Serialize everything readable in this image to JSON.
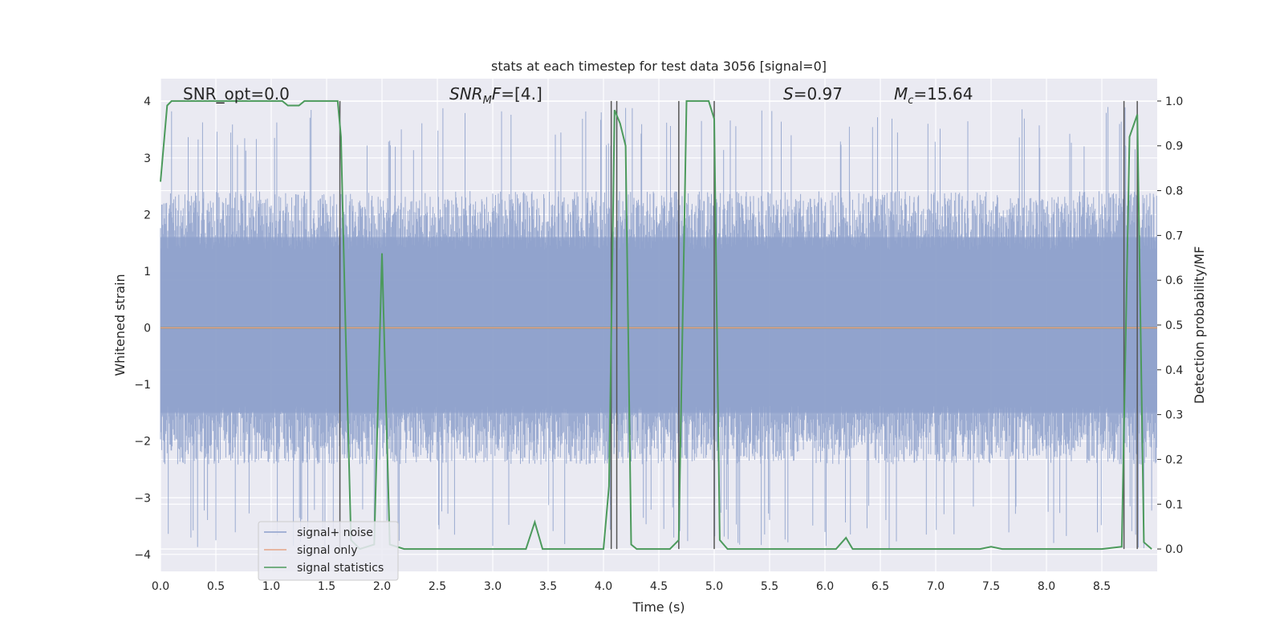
{
  "chart_data": {
    "type": "line",
    "title": "stats at each timestep for test data 3056 [signal=0]",
    "xlabel": "Time (s)",
    "ylabel": "Whitened strain",
    "y2label": "Detection probability/MF",
    "xlim": [
      0.0,
      9.0
    ],
    "ylim": [
      -4.3,
      4.4
    ],
    "y2lim": [
      -0.05,
      1.05
    ],
    "x_ticks": [
      0.0,
      0.5,
      1.0,
      1.5,
      2.0,
      2.5,
      3.0,
      3.5,
      4.0,
      4.5,
      5.0,
      5.5,
      6.0,
      6.5,
      7.0,
      7.5,
      8.0,
      8.5
    ],
    "y_ticks": [
      -4,
      -3,
      -2,
      -1,
      0,
      1,
      2,
      3,
      4
    ],
    "y2_ticks": [
      0.0,
      0.1,
      0.2,
      0.3,
      0.4,
      0.5,
      0.6,
      0.7,
      0.8,
      0.9,
      1.0
    ],
    "grid": true,
    "legend_position": "bottom-left",
    "annotations": [
      "SNR_opt=0.0",
      "=[4.]",
      "=0.97",
      "=15.64"
    ],
    "series": [
      {
        "name": "signal+ noise",
        "color": "#8da0cb",
        "kind": "noise",
        "envelope_typical": 2.3,
        "envelope_peak": 3.9
      },
      {
        "name": "signal only",
        "color": "#e5a386",
        "x": [
          0.0,
          9.0
        ],
        "y": [
          0.0,
          0.0
        ]
      },
      {
        "name": "signal statistics",
        "color": "#4c9a5c",
        "axis": "right",
        "x": [
          0.0,
          0.06,
          0.1,
          0.5,
          1.0,
          1.1,
          1.15,
          1.2,
          1.25,
          1.3,
          1.4,
          1.5,
          1.6,
          1.63,
          1.67,
          1.72,
          1.8,
          1.93,
          2.0,
          2.07,
          2.2,
          3.0,
          3.3,
          3.38,
          3.45,
          3.6,
          4.0,
          4.05,
          4.1,
          4.15,
          4.2,
          4.25,
          4.3,
          4.6,
          4.68,
          4.75,
          4.8,
          4.9,
          4.95,
          5.0,
          5.05,
          5.12,
          5.5,
          6.1,
          6.19,
          6.25,
          6.5,
          7.4,
          7.5,
          7.6,
          8.5,
          8.68,
          8.75,
          8.82,
          8.88,
          8.95
        ],
        "y": [
          0.82,
          0.99,
          1.0,
          1.0,
          1.0,
          1.0,
          0.99,
          0.99,
          0.99,
          1.0,
          1.0,
          1.0,
          1.0,
          0.92,
          0.5,
          0.02,
          0.0,
          0.01,
          0.66,
          0.01,
          0.0,
          0.0,
          0.0,
          0.06,
          0.0,
          0.0,
          0.0,
          0.14,
          0.98,
          0.95,
          0.9,
          0.01,
          0.0,
          0.0,
          0.02,
          1.0,
          1.0,
          1.0,
          1.0,
          0.96,
          0.02,
          0.0,
          0.0,
          0.0,
          0.025,
          0.0,
          0.0,
          0.0,
          0.005,
          0.0,
          0.0,
          0.005,
          0.92,
          0.97,
          0.015,
          0.0
        ]
      }
    ],
    "vlines": [
      1.62,
      4.07,
      4.12,
      4.68,
      5.0,
      8.7,
      8.82
    ]
  }
}
